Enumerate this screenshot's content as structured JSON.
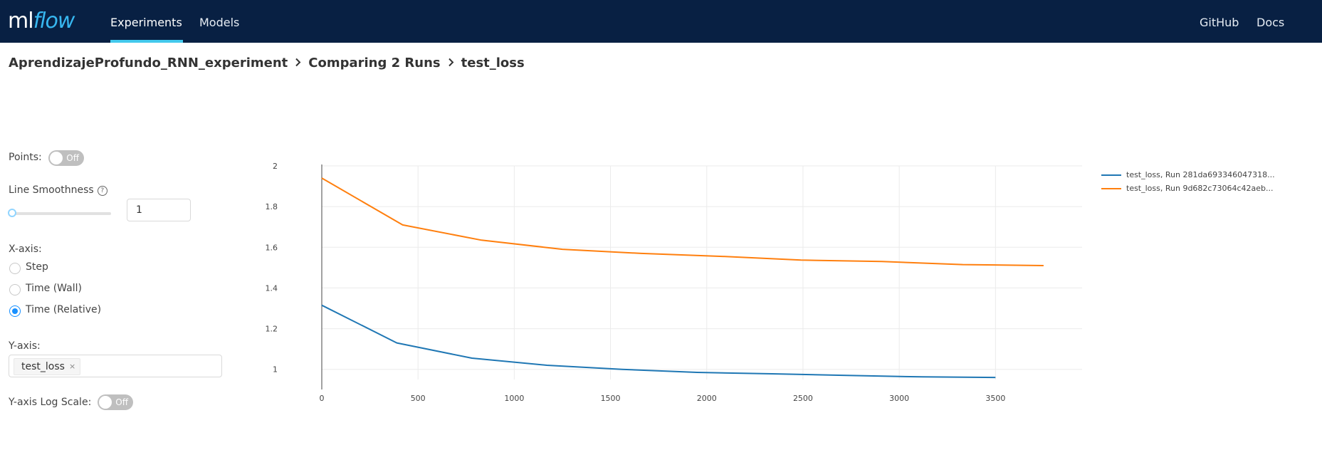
{
  "header": {
    "logo": {
      "ml": "ml",
      "flow": "flow"
    },
    "nav": [
      {
        "label": "Experiments",
        "active": true
      },
      {
        "label": "Models",
        "active": false
      }
    ],
    "right_links": [
      "GitHub",
      "Docs"
    ]
  },
  "breadcrumb": [
    "AprendizajeProfundo_RNN_experiment",
    "Comparing 2 Runs",
    "test_loss"
  ],
  "controls": {
    "points_label": "Points:",
    "points_toggle": "Off",
    "smoothness_label": "Line Smoothness",
    "help_icon": "?",
    "smoothness_value": "1",
    "smoothness_level": 1,
    "xaxis_label": "X-axis:",
    "xaxis_options": [
      {
        "label": "Step",
        "checked": false
      },
      {
        "label": "Time (Wall)",
        "checked": false
      },
      {
        "label": "Time (Relative)",
        "checked": true
      }
    ],
    "yaxis_label": "Y-axis:",
    "yaxis_tag": "test_loss",
    "yaxis_tag_close": "×",
    "log_scale_label": "Y-axis Log Scale:",
    "log_scale_toggle": "Off"
  },
  "chart_data": {
    "type": "line",
    "xlim": [
      0,
      3950
    ],
    "ylim": [
      0.95,
      2.0
    ],
    "x_ticks": [
      0,
      500,
      1000,
      1500,
      2000,
      2500,
      3000,
      3500
    ],
    "y_ticks": [
      1,
      1.2,
      1.4,
      1.6,
      1.8,
      2
    ],
    "grid": true,
    "legend_position": "right",
    "series": [
      {
        "name": "test_loss, Run 281da693346047318...",
        "color": "#1f77b4",
        "x": [
          0,
          390,
          780,
          1170,
          1560,
          1950,
          2340,
          2730,
          3120,
          3500
        ],
        "y": [
          1.315,
          1.13,
          1.055,
          1.02,
          1.0,
          0.985,
          0.978,
          0.97,
          0.963,
          0.96
        ]
      },
      {
        "name": "test_loss, Run 9d682c73064c42aeb...",
        "color": "#ff7f0e",
        "x": [
          0,
          420,
          830,
          1250,
          1660,
          2080,
          2490,
          2910,
          3330,
          3750
        ],
        "y": [
          1.94,
          1.71,
          1.635,
          1.59,
          1.57,
          1.555,
          1.537,
          1.53,
          1.515,
          1.51
        ]
      }
    ]
  }
}
